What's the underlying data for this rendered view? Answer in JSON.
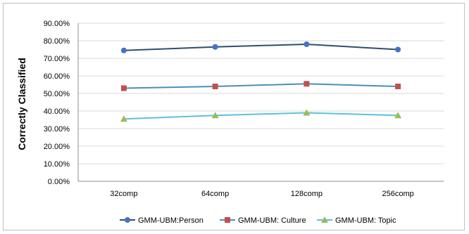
{
  "chart_data": {
    "type": "line",
    "title": "",
    "xlabel": "",
    "ylabel": "Correctly Classified",
    "categories": [
      "32comp",
      "64comp",
      "128comp",
      "256comp"
    ],
    "ylim": [
      0,
      90
    ],
    "y_ticks": [
      "0.00%",
      "10.00%",
      "20.00%",
      "30.00%",
      "40.00%",
      "50.00%",
      "60.00%",
      "70.00%",
      "80.00%",
      "90.00%"
    ],
    "grid": true,
    "legend_position": "bottom",
    "series": [
      {
        "name": "GMM-UBM:Person",
        "values": [
          74.5,
          76.5,
          78.0,
          75.0
        ],
        "color": "#4472c4",
        "line_color": "#2e4f6e",
        "marker": "circle"
      },
      {
        "name": "GMM-UBM: Culture",
        "values": [
          53.0,
          54.0,
          55.5,
          54.0
        ],
        "color": "#c0504d",
        "line_color": "#4a8fb8",
        "marker": "square"
      },
      {
        "name": "GMM-UBM: Topic",
        "values": [
          35.5,
          37.5,
          39.0,
          37.5
        ],
        "color": "#9bbb59",
        "line_color": "#5bc0de",
        "marker": "triangle"
      }
    ]
  }
}
